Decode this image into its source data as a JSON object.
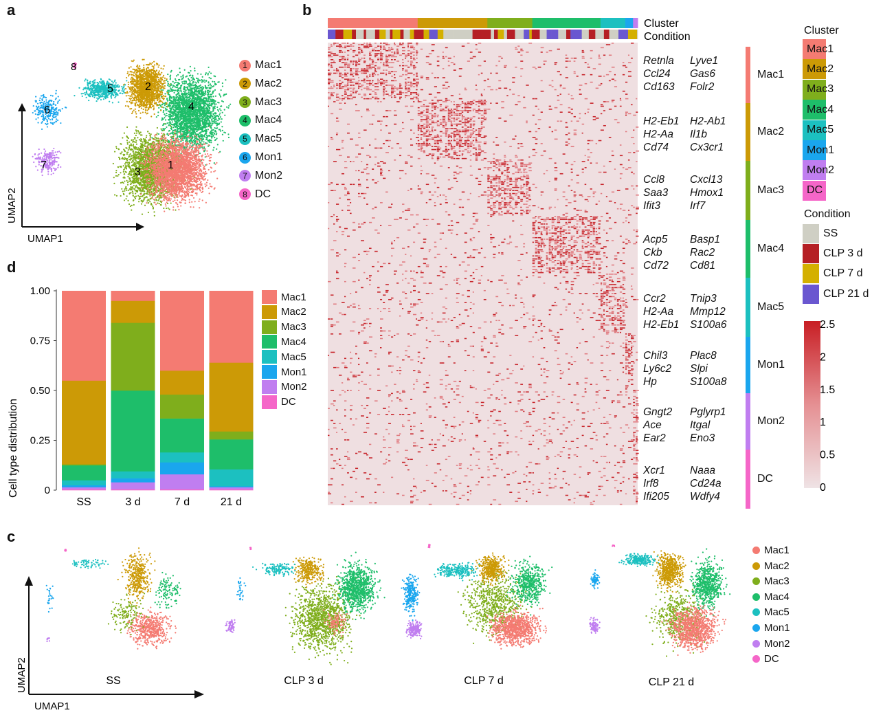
{
  "panels": {
    "a": "a",
    "b": "b",
    "c": "c",
    "d": "d"
  },
  "colors": {
    "Mac1": "#F47B72",
    "Mac2": "#CC9A06",
    "Mac3": "#7FAE1C",
    "Mac4": "#1EBE6A",
    "Mac5": "#1CC0C0",
    "Mon1": "#1AA6EE",
    "Mon2": "#C07EF0",
    "DC": "#F566C8",
    "SS": "#CFCFC4",
    "CLP 3 d": "#B51F24",
    "CLP 7 d": "#D4B000",
    "CLP 21 d": "#6A57D0"
  },
  "panel_a": {
    "xlabel": "UMAP1",
    "ylabel": "UMAP2",
    "cluster_numbers": [
      "1",
      "2",
      "3",
      "4",
      "5",
      "6",
      "7",
      "8"
    ],
    "legend": [
      {
        "num": "1",
        "label": "Mac1"
      },
      {
        "num": "2",
        "label": "Mac2"
      },
      {
        "num": "3",
        "label": "Mac3"
      },
      {
        "num": "4",
        "label": "Mac4"
      },
      {
        "num": "5",
        "label": "Mac5"
      },
      {
        "num": "6",
        "label": "Mon1"
      },
      {
        "num": "7",
        "label": "Mon2"
      },
      {
        "num": "8",
        "label": "DC"
      }
    ]
  },
  "panel_b": {
    "row_labels": [
      "Cluster",
      "Condition"
    ],
    "cluster_legend_title": "Cluster",
    "cluster_legend": [
      "Mac1",
      "Mac2",
      "Mac3",
      "Mac4",
      "Mac5",
      "Mon1",
      "Mon2",
      "DC"
    ],
    "condition_legend_title": "Condition",
    "condition_legend": [
      "SS",
      "CLP 3 d",
      "CLP 7 d",
      "CLP 21 d"
    ],
    "scale_ticks": [
      "2.5",
      "2",
      "1.5",
      "1",
      "0.5",
      "0"
    ],
    "sidebar_labels": [
      "Mac1",
      "Mac2",
      "Mac3",
      "Mac4",
      "Mac5",
      "Mon1",
      "Mon2",
      "DC"
    ],
    "gene_blocks": [
      [
        "Retnla",
        "Lyve1",
        "Ccl24",
        "Gas6",
        "Cd163",
        "Folr2"
      ],
      [
        "H2-Eb1",
        "H2-Ab1",
        "H2-Aa",
        "Il1b",
        "Cd74",
        "Cx3cr1"
      ],
      [
        "Ccl8",
        "Cxcl13",
        "Saa3",
        "Hmox1",
        "Ifit3",
        "Irf7"
      ],
      [
        "Acp5",
        "Basp1",
        "Ckb",
        "Rac2",
        "Cd72",
        "Cd81"
      ],
      [
        "Ccr2",
        "Tnip3",
        "H2-Aa",
        "Mmp12",
        "H2-Eb1",
        "S100a6"
      ],
      [
        "Chil3",
        "Plac8",
        "Ly6c2",
        "Slpi",
        "Hp",
        "S100a8"
      ],
      [
        "Gngt2",
        "Pglyrp1",
        "Ace",
        "Itgal",
        "Ear2",
        "Eno3"
      ],
      [
        "Xcr1",
        "Naaa",
        "Irf8",
        "Cd24a",
        "Ifi205",
        "Wdfy4"
      ]
    ]
  },
  "panel_c": {
    "xlabel": "UMAP1",
    "ylabel": "UMAP2",
    "conditions": [
      "SS",
      "CLP 3 d",
      "CLP 7 d",
      "CLP 21 d"
    ],
    "legend": [
      "Mac1",
      "Mac2",
      "Mac3",
      "Mac4",
      "Mac5",
      "Mon1",
      "Mon2",
      "DC"
    ]
  },
  "chart_data": {
    "type": "bar",
    "stacked": true,
    "ylabel": "Cell type distribution",
    "categories": [
      "SS",
      "3 d",
      "7 d",
      "21 d"
    ],
    "ylim": [
      0,
      1
    ],
    "yticks": [
      "0",
      "0.25",
      "0.50",
      "0.75",
      "1.00"
    ],
    "legend_position": "right",
    "series": [
      {
        "name": "DC",
        "values": [
          0.005,
          0.005,
          0.005,
          0.005
        ]
      },
      {
        "name": "Mon2",
        "values": [
          0.01,
          0.035,
          0.075,
          0.01
        ]
      },
      {
        "name": "Mon1",
        "values": [
          0.01,
          0.02,
          0.06,
          0.005
        ]
      },
      {
        "name": "Mac5",
        "values": [
          0.025,
          0.035,
          0.05,
          0.085
        ]
      },
      {
        "name": "Mac4",
        "values": [
          0.075,
          0.405,
          0.17,
          0.15
        ]
      },
      {
        "name": "Mac3",
        "values": [
          0.005,
          0.34,
          0.12,
          0.04
        ]
      },
      {
        "name": "Mac2",
        "values": [
          0.42,
          0.11,
          0.12,
          0.345
        ]
      },
      {
        "name": "Mac1",
        "values": [
          0.45,
          0.05,
          0.4,
          0.36
        ]
      }
    ],
    "legend": [
      "Mac1",
      "Mac2",
      "Mac3",
      "Mac4",
      "Mac5",
      "Mon1",
      "Mon2",
      "DC"
    ]
  }
}
